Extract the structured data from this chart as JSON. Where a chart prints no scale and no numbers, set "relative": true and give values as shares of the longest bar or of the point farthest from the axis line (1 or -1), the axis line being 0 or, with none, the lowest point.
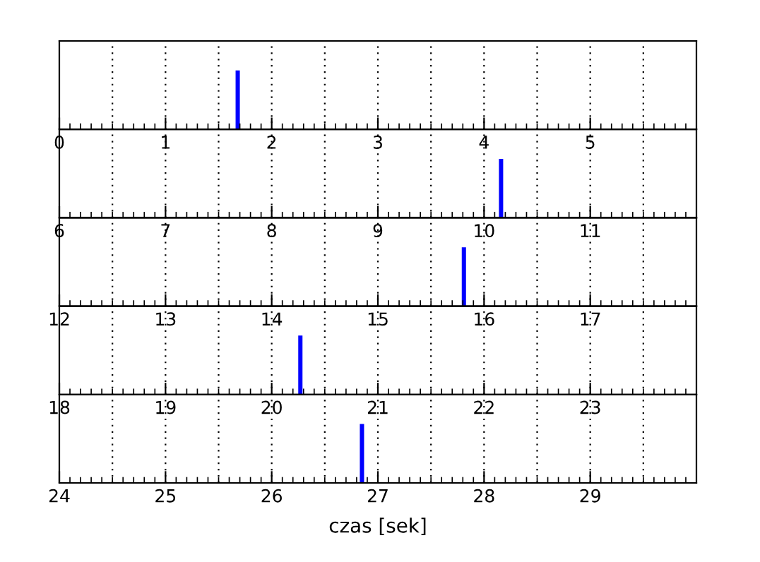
{
  "chart_data": [
    {
      "type": "bar",
      "x": [
        1.68
      ],
      "values": [
        1
      ],
      "relative": true,
      "color": "#0000ff",
      "xlim": [
        0,
        6
      ],
      "xticks": [
        0,
        1,
        2,
        3,
        4,
        5
      ],
      "grid": "x",
      "tick_labels": "x"
    },
    {
      "type": "bar",
      "x": [
        10.16
      ],
      "values": [
        1
      ],
      "relative": true,
      "color": "#0000ff",
      "xlim": [
        6,
        12
      ],
      "xticks": [
        6,
        7,
        8,
        9,
        10,
        11
      ],
      "grid": "x",
      "tick_labels": "x"
    },
    {
      "type": "bar",
      "x": [
        15.81
      ],
      "values": [
        1
      ],
      "relative": true,
      "color": "#0000ff",
      "xlim": [
        12,
        18
      ],
      "xticks": [
        12,
        13,
        14,
        15,
        16,
        17
      ],
      "grid": "x",
      "tick_labels": "x"
    },
    {
      "type": "bar",
      "x": [
        20.27
      ],
      "values": [
        1
      ],
      "relative": true,
      "color": "#0000ff",
      "xlim": [
        18,
        24
      ],
      "xticks": [
        18,
        19,
        20,
        21,
        22,
        23
      ],
      "grid": "x",
      "tick_labels": "x"
    },
    {
      "type": "bar",
      "x": [
        26.85
      ],
      "values": [
        1
      ],
      "relative": true,
      "color": "#0000ff",
      "xlim": [
        24,
        30
      ],
      "xticks": [
        24,
        25,
        26,
        27,
        28,
        29
      ],
      "grid": "x",
      "tick_labels": "x",
      "xlabel": "czas [sek]"
    }
  ]
}
